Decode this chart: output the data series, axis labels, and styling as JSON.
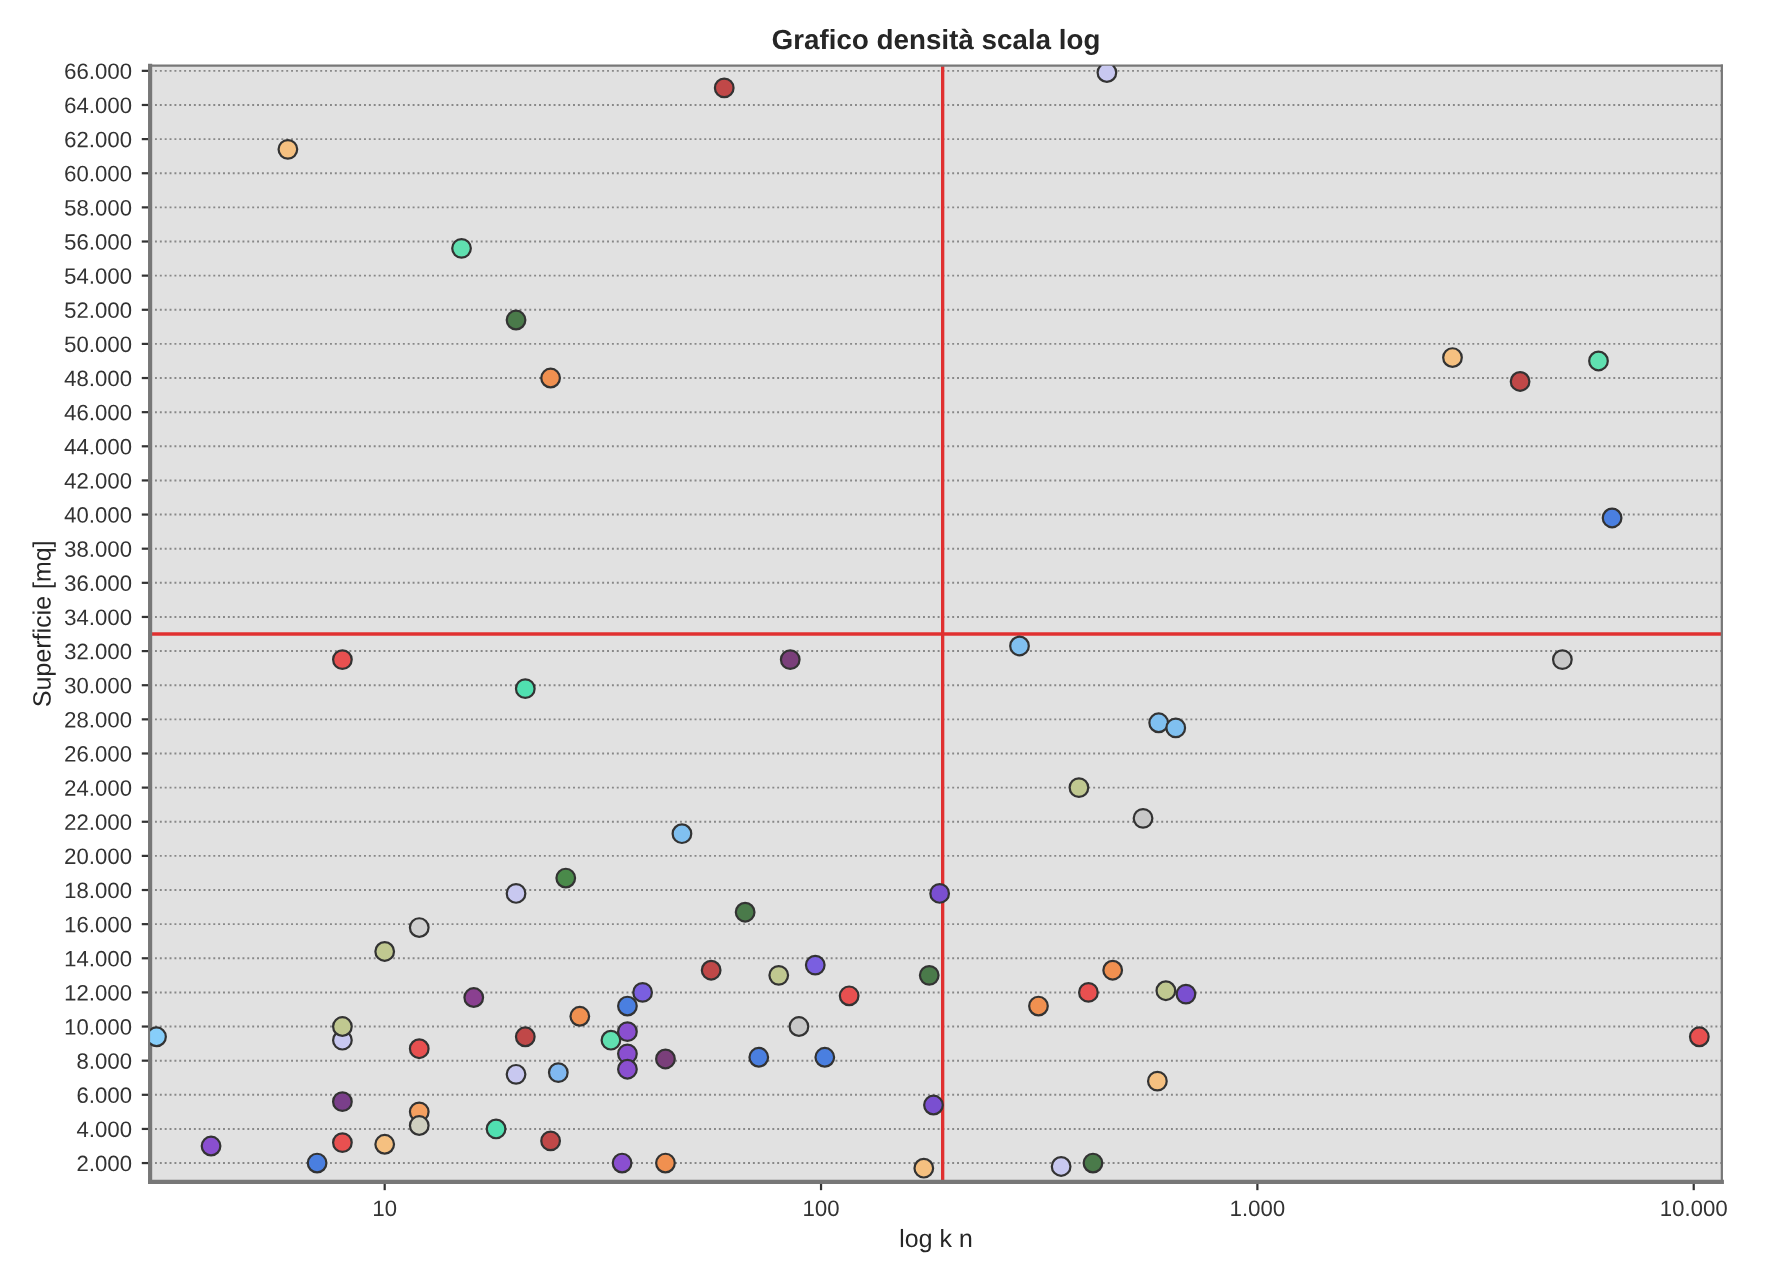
{
  "chart_data": {
    "type": "scatter",
    "title": "Grafico densità scala log",
    "xlabel": "log k n",
    "ylabel": "Superficie [mq]",
    "log": "x",
    "grid": "y",
    "marker": "circle",
    "xlim": [
      2.9,
      11600
    ],
    "ylim": [
      900,
      66300
    ],
    "xticks": [
      10,
      100,
      {
        "value": 1000,
        "label": "1.000"
      },
      {
        "value": 10000,
        "label": "10.000"
      }
    ],
    "yticks": [
      {
        "value": 2000,
        "label": "2.000"
      },
      {
        "value": 4000,
        "label": "4.000"
      },
      {
        "value": 6000,
        "label": "6.000"
      },
      {
        "value": 8000,
        "label": "8.000"
      },
      {
        "value": 10000,
        "label": "10.000"
      },
      {
        "value": 12000,
        "label": "12.000"
      },
      {
        "value": 14000,
        "label": "14.000"
      },
      {
        "value": 16000,
        "label": "16.000"
      },
      {
        "value": 18000,
        "label": "18.000"
      },
      {
        "value": 20000,
        "label": "20.000"
      },
      {
        "value": 22000,
        "label": "22.000"
      },
      {
        "value": 24000,
        "label": "24.000"
      },
      {
        "value": 26000,
        "label": "26.000"
      },
      {
        "value": 28000,
        "label": "28.000"
      },
      {
        "value": 30000,
        "label": "30.000"
      },
      {
        "value": 32000,
        "label": "32.000"
      },
      {
        "value": 34000,
        "label": "34.000"
      },
      {
        "value": 36000,
        "label": "36.000"
      },
      {
        "value": 38000,
        "label": "38.000"
      },
      {
        "value": 40000,
        "label": "40.000"
      },
      {
        "value": 42000,
        "label": "42.000"
      },
      {
        "value": 44000,
        "label": "44.000"
      },
      {
        "value": 46000,
        "label": "46.000"
      },
      {
        "value": 48000,
        "label": "48.000"
      },
      {
        "value": 50000,
        "label": "50.000"
      },
      {
        "value": 52000,
        "label": "52.000"
      },
      {
        "value": 54000,
        "label": "54.000"
      },
      {
        "value": 56000,
        "label": "56.000"
      },
      {
        "value": 58000,
        "label": "58.000"
      },
      {
        "value": 60000,
        "label": "60.000"
      },
      {
        "value": 62000,
        "label": "62.000"
      },
      {
        "value": 64000,
        "label": "64.000"
      },
      {
        "value": 66000,
        "label": "66.000"
      }
    ],
    "ref_lines": [
      {
        "axis": "y",
        "value": 33000,
        "color": "#e03030"
      },
      {
        "axis": "x",
        "value": 190,
        "color": "#e03030"
      }
    ],
    "x": [
      3.0,
      4.0,
      7.0,
      8.0,
      8.0,
      8.0,
      8.0,
      8.0,
      10,
      10,
      12,
      12,
      12,
      12,
      16,
      18,
      20,
      20,
      21,
      21,
      26,
      24,
      25,
      28,
      33,
      36,
      36,
      36,
      36,
      39,
      35,
      44,
      44,
      48,
      56,
      67,
      72,
      60,
      80,
      85,
      89,
      97,
      102,
      116,
      177,
      187,
      181,
      172,
      285,
      315,
      355,
      390,
      420,
      410,
      466,
      547,
      594,
      650,
      590,
      617,
      686,
      5000,
      10300,
      452,
      2800,
      4000,
      6050,
      6500,
      6.0,
      15,
      20,
      24
    ],
    "values": [
      9400,
      3000,
      2000,
      3200,
      5600,
      9200,
      10000,
      31500,
      3100,
      14400,
      15800,
      8700,
      5000,
      4200,
      11700,
      4000,
      17800,
      7200,
      29800,
      9400,
      18700,
      3300,
      7300,
      10600,
      9200,
      11200,
      9700,
      8400,
      7500,
      12000,
      2000,
      2000,
      8100,
      21300,
      13300,
      16700,
      8200,
      65000,
      13000,
      31500,
      10000,
      13600,
      8200,
      11800,
      13000,
      17800,
      5400,
      1700,
      32300,
      11200,
      1800,
      24000,
      2000,
      12000,
      13300,
      22200,
      27800,
      27500,
      6800,
      12100,
      11900,
      31500,
      9400,
      65900,
      49200,
      47800,
      49000,
      39800,
      61400,
      55600,
      51400,
      48000
    ],
    "colors": [
      "#87cefa",
      "#8a4fd0",
      "#4a7fe0",
      "#e85050",
      "#7a3f8a",
      "#c8c8f0",
      "#c0c890",
      "#e85050",
      "#f5c080",
      "#c0c890",
      "#d0d0d0",
      "#e85050",
      "#f5a060",
      "#d0d0c0",
      "#8a4090",
      "#50e0b0",
      "#c8c8f0",
      "#c8c8f0",
      "#50e0b0",
      "#c04848",
      "#4a8a4a",
      "#c04848",
      "#80b8f0",
      "#f09050",
      "#60e0b0",
      "#4a7fe0",
      "#8a4fd0",
      "#8a4fd0",
      "#8a4fd0",
      "#7a5fe0",
      "#8a4fd0",
      "#f09050",
      "#7a3f7a",
      "#80c0f0",
      "#c04848",
      "#4a7a4a",
      "#4a7fe0",
      "#c04848",
      "#c0c890",
      "#7a3f7a",
      "#c8c8c8",
      "#7a5fe0",
      "#4a7fe0",
      "#e85050",
      "#4a7a4a",
      "#7a4fd0",
      "#7a4fd0",
      "#f5c080",
      "#80c0f0",
      "#f09050",
      "#c8c8f0",
      "#c0c890",
      "#4a7a4a",
      "#e85050",
      "#f09050",
      "#c8c8c8",
      "#80c0f0",
      "#80c0f0",
      "#f5c080",
      "#c0c890",
      "#7a4fd0",
      "#c8c8c8",
      "#e85050",
      "#c8c8f0",
      "#f5c080",
      "#c04848",
      "#60e0b0",
      "#4a7fe0",
      "#f5c080",
      "#60e0b0",
      "#4a7a4a",
      "#f09050"
    ]
  }
}
